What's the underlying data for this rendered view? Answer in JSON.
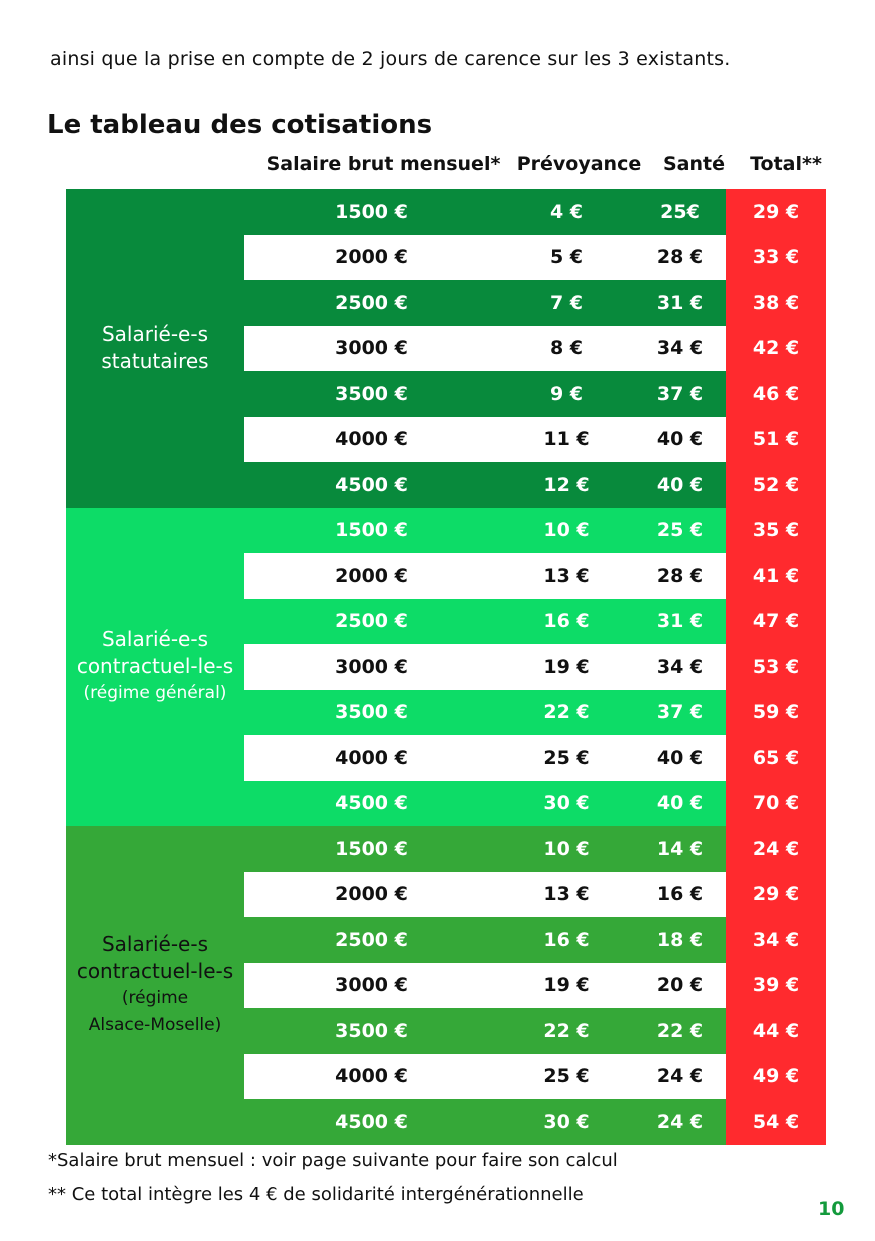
{
  "intro_text": "ainsi que la prise en compte de 2 jours de carence sur les 3 existants.",
  "title": "Le tableau des cotisations",
  "headers": {
    "salaire": "Salaire brut mensuel*",
    "prevoyance": "Prévoyance",
    "sante": "Santé",
    "total": "Total**"
  },
  "colors": {
    "statutaires": "#088a3c",
    "contractuels_general": "#0ddc67",
    "contractuels_alsace": "#35a838",
    "total": "#ff2a2e",
    "page_number": "#139a3c"
  },
  "groups": [
    {
      "label_lines": [
        "Salarié-e-s",
        "statutaires"
      ],
      "sub_lines": [],
      "rows": [
        {
          "salaire": "1500 €",
          "prevoyance": "4 €",
          "sante": "25€",
          "total": "29 €"
        },
        {
          "salaire": "2000 €",
          "prevoyance": "5 €",
          "sante": "28 €",
          "total": "33 €"
        },
        {
          "salaire": "2500 €",
          "prevoyance": "7 €",
          "sante": "31 €",
          "total": "38 €"
        },
        {
          "salaire": "3000 €",
          "prevoyance": "8 €",
          "sante": "34 €",
          "total": "42 €"
        },
        {
          "salaire": "3500 €",
          "prevoyance": "9 €",
          "sante": "37 €",
          "total": "46 €"
        },
        {
          "salaire": "4000 €",
          "prevoyance": "11 €",
          "sante": "40 €",
          "total": "51 €"
        },
        {
          "salaire": "4500 €",
          "prevoyance": "12 €",
          "sante": "40 €",
          "total": "52 €"
        }
      ]
    },
    {
      "label_lines": [
        "Salarié-e-s",
        "contractuel-le-s"
      ],
      "sub_lines": [
        "(régime général)"
      ],
      "rows": [
        {
          "salaire": "1500 €",
          "prevoyance": "10 €",
          "sante": "25 €",
          "total": "35 €"
        },
        {
          "salaire": "2000 €",
          "prevoyance": "13 €",
          "sante": "28 €",
          "total": "41 €"
        },
        {
          "salaire": "2500 €",
          "prevoyance": "16 €",
          "sante": "31 €",
          "total": "47 €"
        },
        {
          "salaire": "3000 €",
          "prevoyance": "19 €",
          "sante": "34 €",
          "total": "53 €"
        },
        {
          "salaire": "3500 €",
          "prevoyance": "22 €",
          "sante": "37 €",
          "total": "59 €"
        },
        {
          "salaire": "4000 €",
          "prevoyance": "25 €",
          "sante": "40 €",
          "total": "65 €"
        },
        {
          "salaire": "4500 €",
          "prevoyance": "30 €",
          "sante": "40 €",
          "total": "70 €"
        }
      ]
    },
    {
      "label_lines": [
        "Salarié-e-s",
        "contractuel-le-s"
      ],
      "sub_lines": [
        "(régime",
        "Alsace-Moselle)"
      ],
      "rows": [
        {
          "salaire": "1500 €",
          "prevoyance": "10 €",
          "sante": "14 €",
          "total": "24 €"
        },
        {
          "salaire": "2000 €",
          "prevoyance": "13 €",
          "sante": "16 €",
          "total": "29 €"
        },
        {
          "salaire": "2500 €",
          "prevoyance": "16 €",
          "sante": "18 €",
          "total": "34 €"
        },
        {
          "salaire": "3000 €",
          "prevoyance": "19 €",
          "sante": "20 €",
          "total": "39 €"
        },
        {
          "salaire": "3500 €",
          "prevoyance": "22 €",
          "sante": "22 €",
          "total": "44 €"
        },
        {
          "salaire": "4000 €",
          "prevoyance": "25 €",
          "sante": "24 €",
          "total": "49 €"
        },
        {
          "salaire": "4500 €",
          "prevoyance": "30 €",
          "sante": "24 €",
          "total": "54 €"
        }
      ]
    }
  ],
  "footnotes": {
    "salaire": "*Salaire brut mensuel : voir page suivante pour faire son calcul",
    "total": "** Ce total intègre les 4 € de solidarité intergénérationnelle"
  },
  "page_number": "10"
}
